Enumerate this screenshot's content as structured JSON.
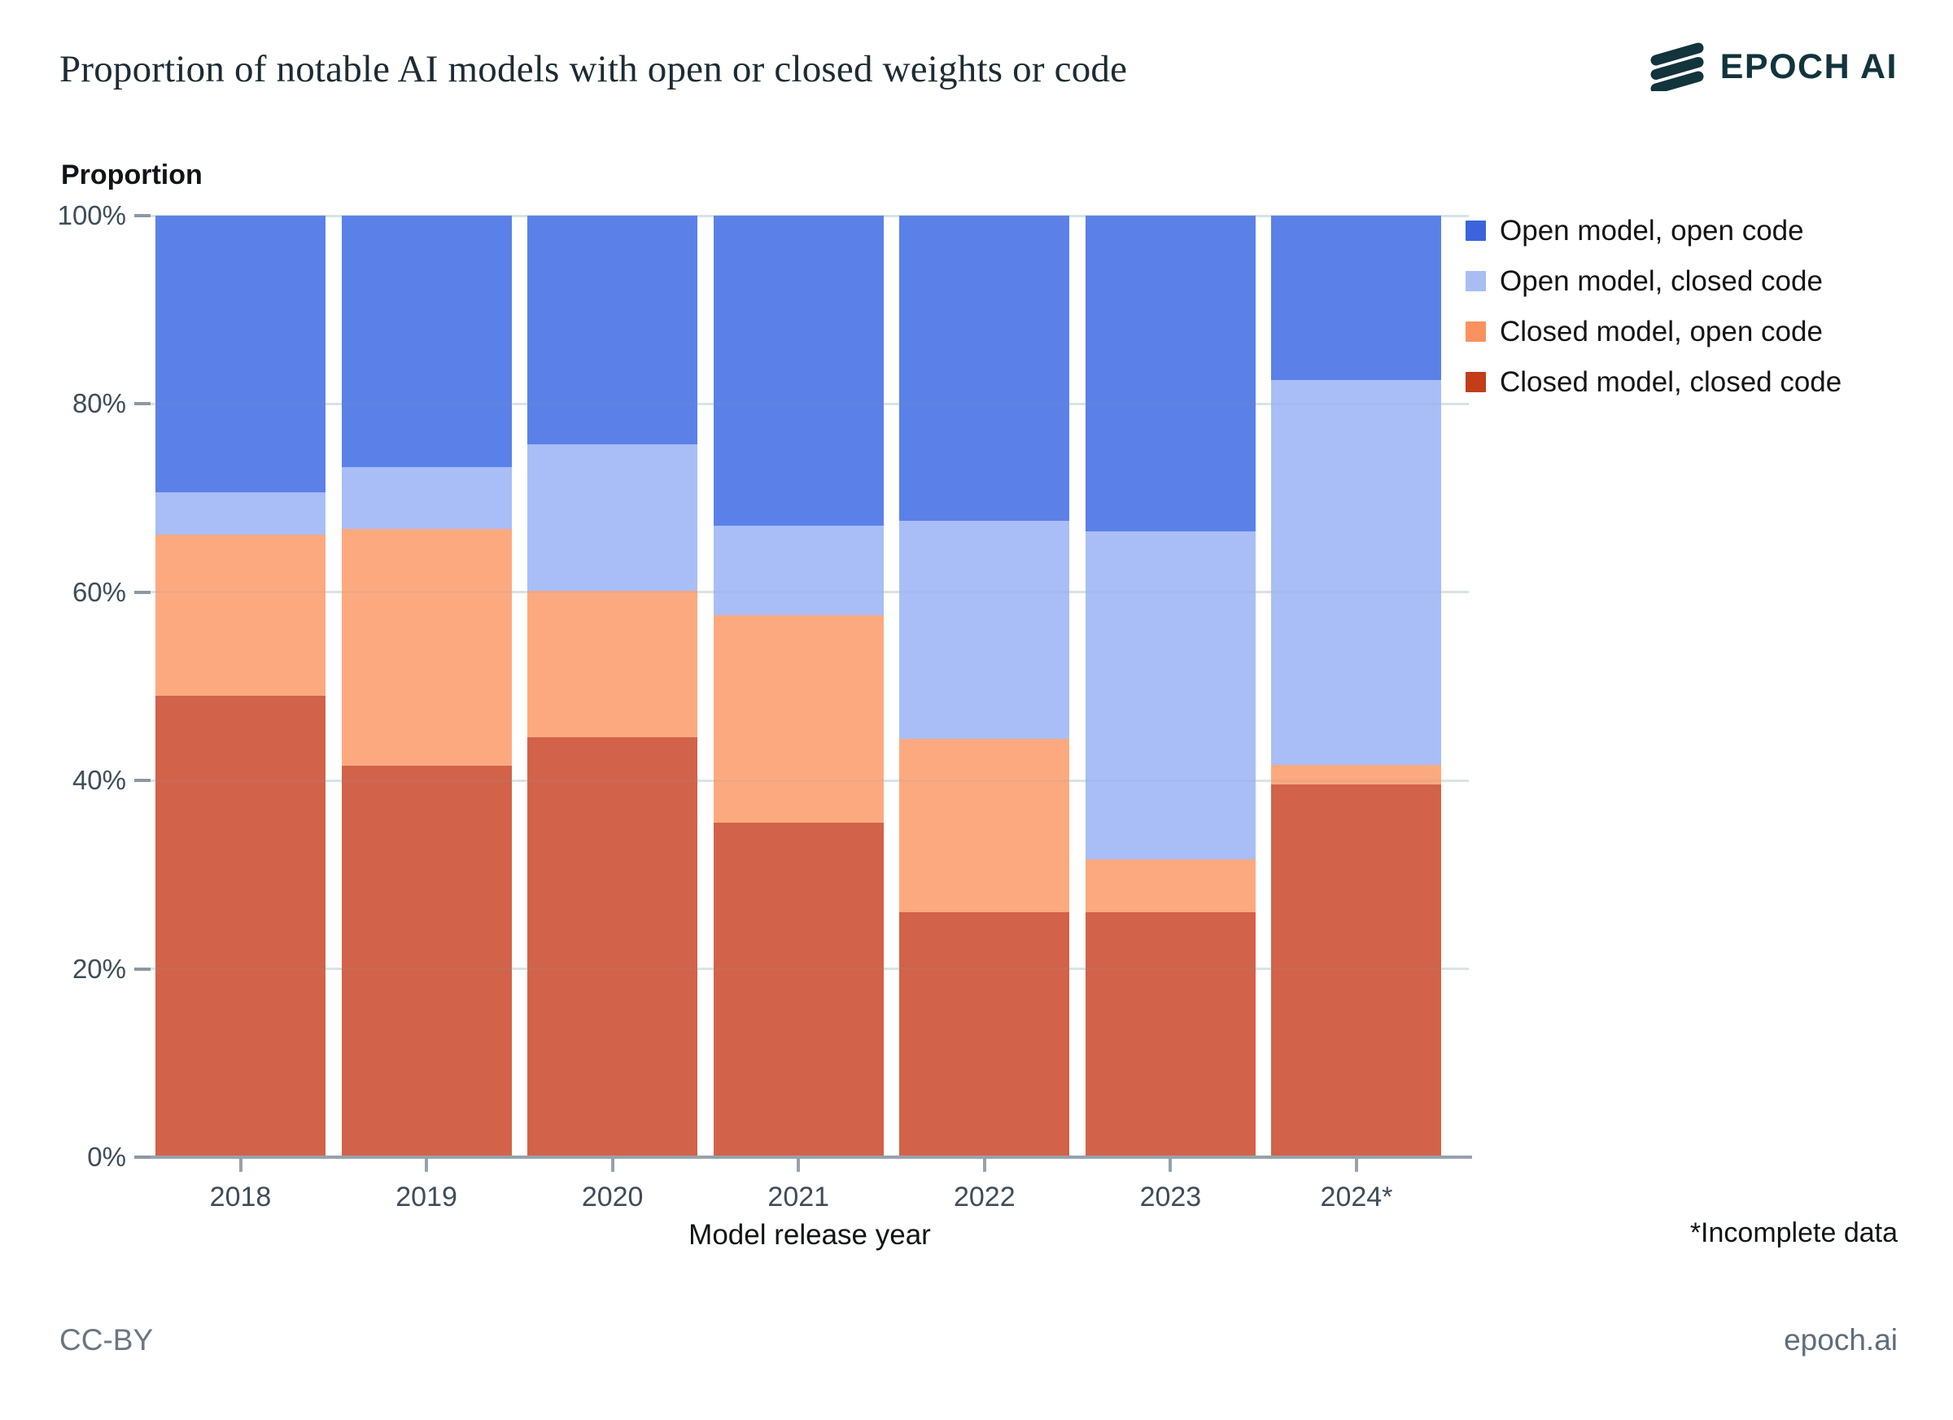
{
  "header": {
    "title": "Proportion of notable AI models with open or closed weights or code",
    "logo_text": "EPOCH AI",
    "logo_color": "#12343c"
  },
  "chart_data": {
    "type": "bar",
    "stacked": true,
    "unit": "%",
    "title": "Proportion of notable AI models with open or closed weights or code",
    "ylabel": "Proportion",
    "xlabel": "Model release year",
    "categories": [
      "2018",
      "2019",
      "2020",
      "2021",
      "2022",
      "2023",
      "2024*"
    ],
    "y_ticks": [
      "0%",
      "20%",
      "40%",
      "60%",
      "80%",
      "100%"
    ],
    "ylim": [
      0,
      100
    ],
    "grid": true,
    "legend_position": "right",
    "series": [
      {
        "name": "Open model, open code",
        "color": "#3b63dd",
        "bar_color": "#5b81e8",
        "values": [
          29.4,
          26.7,
          24.3,
          32.9,
          32.4,
          33.5,
          17.5
        ]
      },
      {
        "name": "Open model, closed code",
        "color": "#a9bdf2",
        "bar_color": "#a9bef7",
        "values": [
          4.5,
          6.6,
          15.5,
          9.5,
          23.2,
          34.9,
          40.8
        ]
      },
      {
        "name": "Closed model, open code",
        "color": "#f9925e",
        "bar_color": "#fda980",
        "values": [
          17.1,
          25.1,
          15.6,
          22.1,
          18.4,
          5.6,
          2.1
        ]
      },
      {
        "name": "Closed model, closed code",
        "color": "#c23d18",
        "bar_color": "#d26249",
        "values": [
          49.0,
          41.6,
          44.6,
          35.5,
          26.0,
          26.0,
          39.6
        ]
      }
    ],
    "footnote": "*Incomplete data"
  },
  "footer": {
    "left": "CC-BY",
    "right": "epoch.ai"
  }
}
